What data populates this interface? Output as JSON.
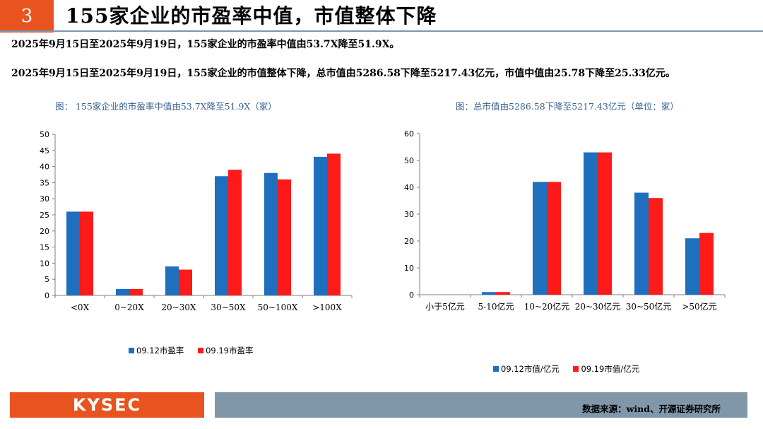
{
  "slide_number": "3",
  "title": "155家企业的市盈率中值，市值整体下降",
  "paragraph1": "2025年9月15日至2025年9月19日，155家企业的市盈率中值由53.7X降至51.9X。",
  "paragraph2": "2025年9月15日至2025年9月19日，155家企业的市值整体下降，总市值由5286.58下降至5217.43亿元，市值中值由25.78下降至25.33亿元。",
  "logo_text": "KYSEC",
  "source": "数据来源：wind、开源证券研究所",
  "colors": {
    "series1": "#1f6fbf",
    "series2": "#ff1a1a",
    "accent": "#e8531f",
    "footer_gray": "#7f97a8",
    "caption": "#355f91"
  },
  "chart_data": [
    {
      "type": "bar",
      "title": "图：  155家企业的市盈率中值由53.7X降至51.9X（家）",
      "categories": [
        "<0X",
        "0~20X",
        "20~30X",
        "30~50X",
        "50~100X",
        ">100X"
      ],
      "series": [
        {
          "name": "09.12市盈率",
          "values": [
            26,
            2,
            9,
            37,
            38,
            43
          ]
        },
        {
          "name": "09.19市盈率",
          "values": [
            26,
            2,
            8,
            39,
            36,
            44
          ]
        }
      ],
      "ylim": [
        0,
        50
      ],
      "yticks": [
        0,
        5,
        10,
        15,
        20,
        25,
        30,
        35,
        40,
        45,
        50
      ],
      "legend": "bottom",
      "grid": false
    },
    {
      "type": "bar",
      "title": "图：总市值由5286.58下降至5217.43亿元（单位：家）",
      "categories": [
        "小于5亿元",
        "5-10亿元",
        "10~20亿元",
        "20~30亿元",
        "30~50亿元",
        ">50亿元"
      ],
      "series": [
        {
          "name": "09.12市值/亿元",
          "values": [
            0,
            1,
            42,
            53,
            38,
            21
          ]
        },
        {
          "name": "09.19市值/亿元",
          "values": [
            0,
            1,
            42,
            53,
            36,
            23
          ]
        }
      ],
      "ylim": [
        0,
        60
      ],
      "yticks": [
        0,
        10,
        20,
        30,
        40,
        50,
        60
      ],
      "legend": "bottom",
      "grid": false
    }
  ]
}
